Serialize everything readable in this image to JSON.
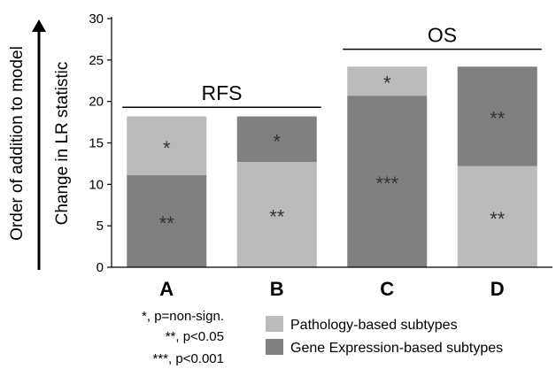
{
  "chart_data": {
    "type": "bar",
    "stacked": true,
    "ylabel": "Change in LR statistic",
    "side_label": "Order of addition to model",
    "ylim": [
      0,
      30
    ],
    "yticks": [
      0,
      5,
      10,
      15,
      20,
      25,
      30
    ],
    "categories": [
      "A",
      "B",
      "C",
      "D"
    ],
    "stacks": [
      {
        "category": "A",
        "segments": [
          {
            "series": "Gene Expression-based subtypes",
            "value": 11.1,
            "label": "**"
          },
          {
            "series": "Pathology-based subtypes",
            "value": 7.1,
            "label": "*"
          }
        ]
      },
      {
        "category": "B",
        "segments": [
          {
            "series": "Pathology-based subtypes",
            "value": 12.7,
            "label": "**"
          },
          {
            "series": "Gene Expression-based subtypes",
            "value": 5.5,
            "label": "*"
          }
        ]
      },
      {
        "category": "C",
        "segments": [
          {
            "series": "Gene Expression-based subtypes",
            "value": 20.7,
            "label": "***"
          },
          {
            "series": "Pathology-based subtypes",
            "value": 3.5,
            "label": "*"
          }
        ]
      },
      {
        "category": "D",
        "segments": [
          {
            "series": "Pathology-based subtypes",
            "value": 12.2,
            "label": "**"
          },
          {
            "series": "Gene Expression-based subtypes",
            "value": 12.0,
            "label": "**"
          }
        ]
      }
    ],
    "groups": [
      {
        "label": "RFS",
        "categories": [
          "A",
          "B"
        ],
        "y": 19.3
      },
      {
        "label": "OS",
        "categories": [
          "C",
          "D"
        ],
        "y": 26.3
      }
    ],
    "legend": {
      "placement": "bottom-right",
      "entries": [
        {
          "label": "Pathology-based subtypes",
          "color": "#bbbbbb"
        },
        {
          "label": "Gene Expression-based subtypes",
          "color": "#808080"
        }
      ]
    },
    "significance_notes": [
      "*, p=non-sign.",
      "**, p<0.05",
      "***, p<0.001"
    ]
  },
  "colors": {
    "Pathology-based subtypes": "#bbbbbb",
    "Gene Expression-based subtypes": "#808080"
  }
}
